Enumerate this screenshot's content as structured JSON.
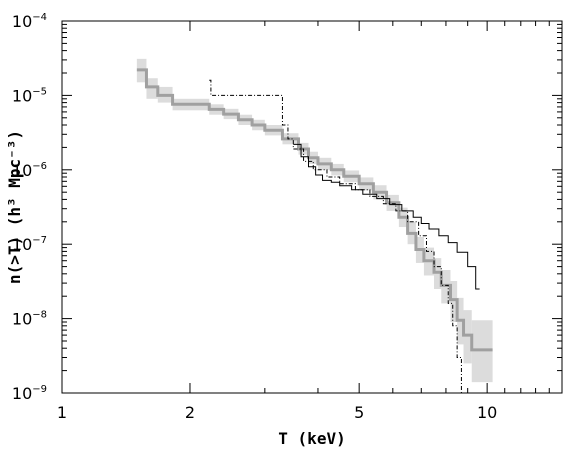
{
  "chart_data": {
    "type": "line",
    "title": "",
    "xlabel": "T (keV)",
    "ylabel": "n(>T) (h³ Mpc⁻³)",
    "x_scale": "log",
    "y_scale": "log",
    "xlim": [
      1,
      15
    ],
    "ylim": [
      1e-09,
      0.0001
    ],
    "x_ticks": [
      {
        "value": 1,
        "label": "1"
      },
      {
        "value": 2,
        "label": "2"
      },
      {
        "value": 5,
        "label": "5"
      },
      {
        "value": 10,
        "label": "10"
      }
    ],
    "y_ticks": [
      {
        "value": 1e-09,
        "base": "10",
        "exp": "−9"
      },
      {
        "value": 1e-08,
        "base": "10",
        "exp": "−8"
      },
      {
        "value": 1e-07,
        "base": "10",
        "exp": "−7"
      },
      {
        "value": 1e-06,
        "base": "10",
        "exp": "−6"
      },
      {
        "value": 1e-05,
        "base": "10",
        "exp": "−5"
      },
      {
        "value": 0.0001,
        "base": "10",
        "exp": "−4"
      }
    ],
    "grid": false,
    "legend": "none",
    "series": [
      {
        "style": "thick-gray-step-with-shaded-band",
        "color": "#a0a0a0",
        "band_color": "#dcdcdc",
        "x": [
          1.5,
          1.58,
          1.68,
          1.82,
          2.22,
          2.4,
          2.6,
          2.8,
          3.0,
          3.3,
          3.6,
          3.8,
          4.0,
          4.3,
          4.6,
          5.0,
          5.4,
          5.8,
          6.2,
          6.5,
          6.8,
          7.1,
          7.5,
          7.8,
          8.2,
          8.5,
          8.8,
          9.2,
          10.3
        ],
        "values": [
          2.2e-05,
          1.3e-05,
          1e-05,
          7.6e-06,
          6.5e-06,
          5.6e-06,
          4.7e-06,
          4e-06,
          3.4e-06,
          2.6e-06,
          1.9e-06,
          1.45e-06,
          1.2e-06,
          1e-06,
          8.2e-07,
          6.5e-07,
          5e-07,
          3.6e-07,
          2.3e-07,
          1.4e-07,
          8.5e-08,
          6e-08,
          4.2e-08,
          2.8e-08,
          1.8e-08,
          9.5e-09,
          6e-09,
          3.8e-09,
          3.8e-09
        ],
        "lower": [
          1.5e-05,
          9e-06,
          8e-06,
          6.3e-06,
          5.5e-06,
          4.8e-06,
          4e-06,
          3.4e-06,
          2.9e-06,
          2.2e-06,
          1.6e-06,
          1.2e-06,
          1e-06,
          8.4e-07,
          6.8e-07,
          5.3e-07,
          4e-07,
          2.8e-07,
          1.7e-07,
          1e-07,
          5.6e-08,
          3.8e-08,
          2.5e-08,
          1.6e-08,
          9e-09,
          4.5e-09,
          2.5e-09,
          1.4e-09,
          1.4e-09
        ],
        "upper": [
          3.1e-05,
          1.7e-05,
          1.3e-05,
          9e-06,
          7.6e-06,
          6.6e-06,
          5.5e-06,
          4.7e-06,
          4e-06,
          3.1e-06,
          2.3e-06,
          1.75e-06,
          1.45e-06,
          1.2e-06,
          9.8e-07,
          7.9e-07,
          6.2e-07,
          4.6e-07,
          3.1e-07,
          2e-07,
          1.25e-07,
          9e-08,
          6.5e-08,
          4.5e-08,
          3.2e-08,
          1.9e-08,
          1.3e-08,
          9.5e-09,
          9.5e-09
        ]
      },
      {
        "style": "thin-solid-black-step",
        "color": "#000000",
        "x": [
          3.5,
          3.65,
          3.8,
          3.95,
          4.1,
          4.3,
          4.5,
          4.8,
          5.1,
          5.5,
          5.9,
          6.3,
          6.7,
          7.0,
          7.3,
          7.7,
          8.1,
          8.5,
          9.0,
          9.4,
          9.6
        ],
        "values": [
          2.2e-06,
          1.5e-06,
          1.1e-06,
          8.5e-07,
          7.2e-07,
          6.8e-07,
          6.1e-07,
          5.4e-07,
          4.7e-07,
          4.1e-07,
          3.4e-07,
          2.8e-07,
          2.3e-07,
          1.9e-07,
          1.6e-07,
          1.3e-07,
          1.05e-07,
          7.8e-08,
          5e-08,
          2.5e-08,
          2.5e-08
        ]
      },
      {
        "style": "thin-dash-dot-black-step",
        "color": "#000000",
        "x": [
          2.22,
          2.24,
          3.3,
          3.4,
          3.5,
          3.7,
          3.9,
          4.2,
          4.5,
          4.9,
          5.3,
          5.7,
          6.1,
          6.5,
          6.9,
          7.2,
          7.5,
          7.8,
          8.1,
          8.3,
          8.5,
          8.7,
          8.8
        ],
        "values": [
          1.6e-05,
          1e-05,
          4e-06,
          2.6e-06,
          1.9e-06,
          1.3e-06,
          1e-06,
          8e-07,
          6.5e-07,
          5.4e-07,
          4.4e-07,
          3.5e-07,
          2.8e-07,
          2e-07,
          1.3e-07,
          8e-08,
          5e-08,
          2.8e-08,
          1.6e-08,
          8e-09,
          3e-09,
          1e-09,
          1e-09
        ]
      }
    ]
  }
}
